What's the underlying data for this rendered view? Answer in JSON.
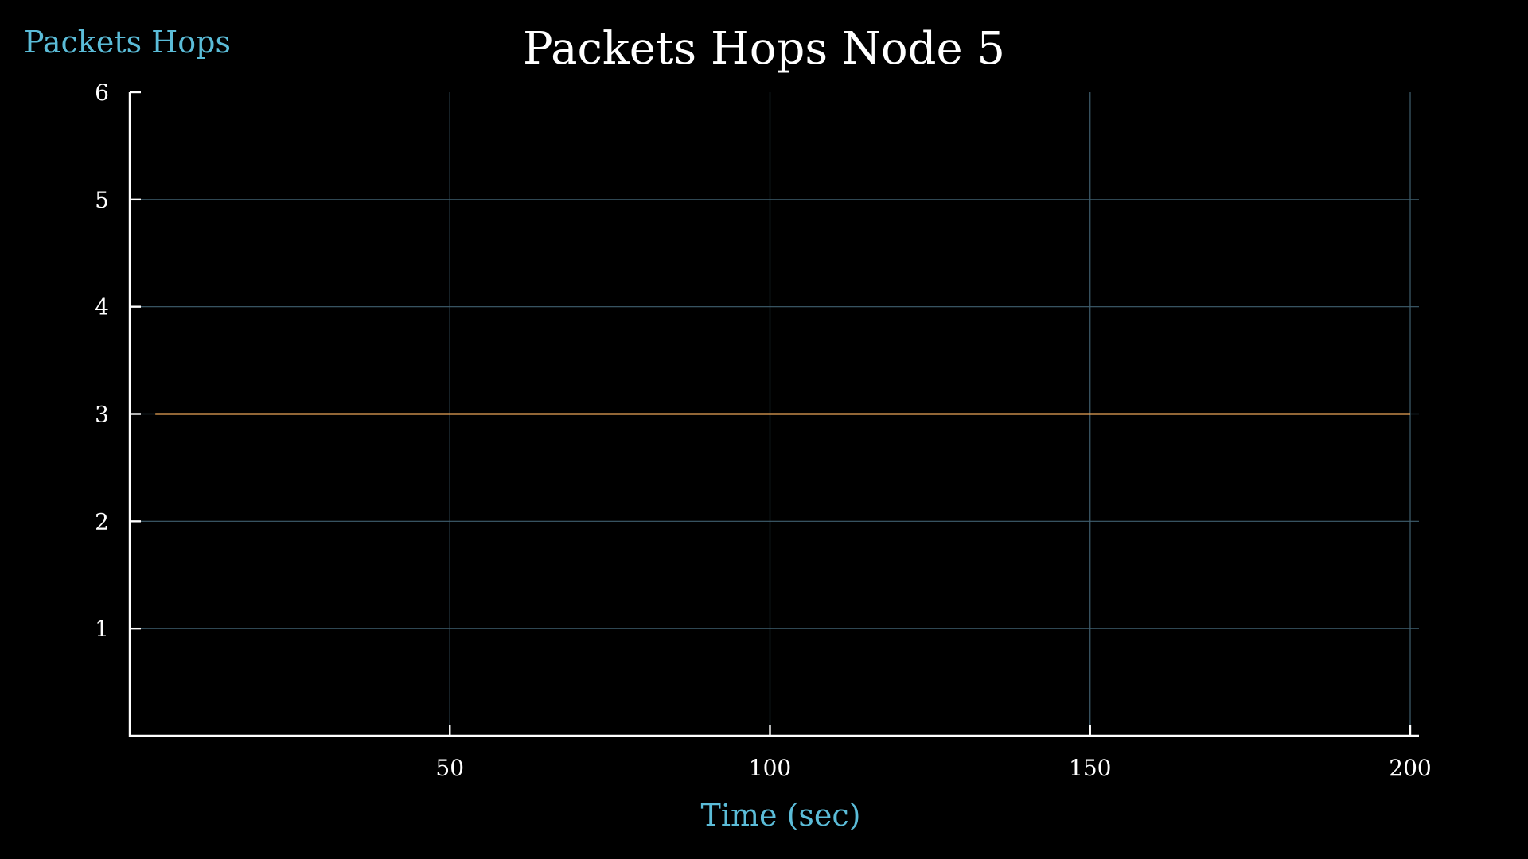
{
  "chart_data": {
    "type": "line",
    "title": "Packets Hops Node 5",
    "xlabel": "Time (sec)",
    "ylabel": "Packets Hops",
    "xlim": [
      0,
      200
    ],
    "ylim": [
      0,
      6
    ],
    "x_ticks": [
      50,
      100,
      150,
      200
    ],
    "y_ticks": [
      1,
      2,
      3,
      4,
      5,
      6
    ],
    "grid": true,
    "series": [
      {
        "color": "#e8a456",
        "x": [
          4,
          200
        ],
        "y": [
          3,
          3
        ]
      }
    ]
  },
  "colors": {
    "background": "#000000",
    "axis": "#ffffff",
    "grid": "#3f5f6f",
    "label_accent": "#5bbcd8",
    "title": "#ffffff"
  }
}
